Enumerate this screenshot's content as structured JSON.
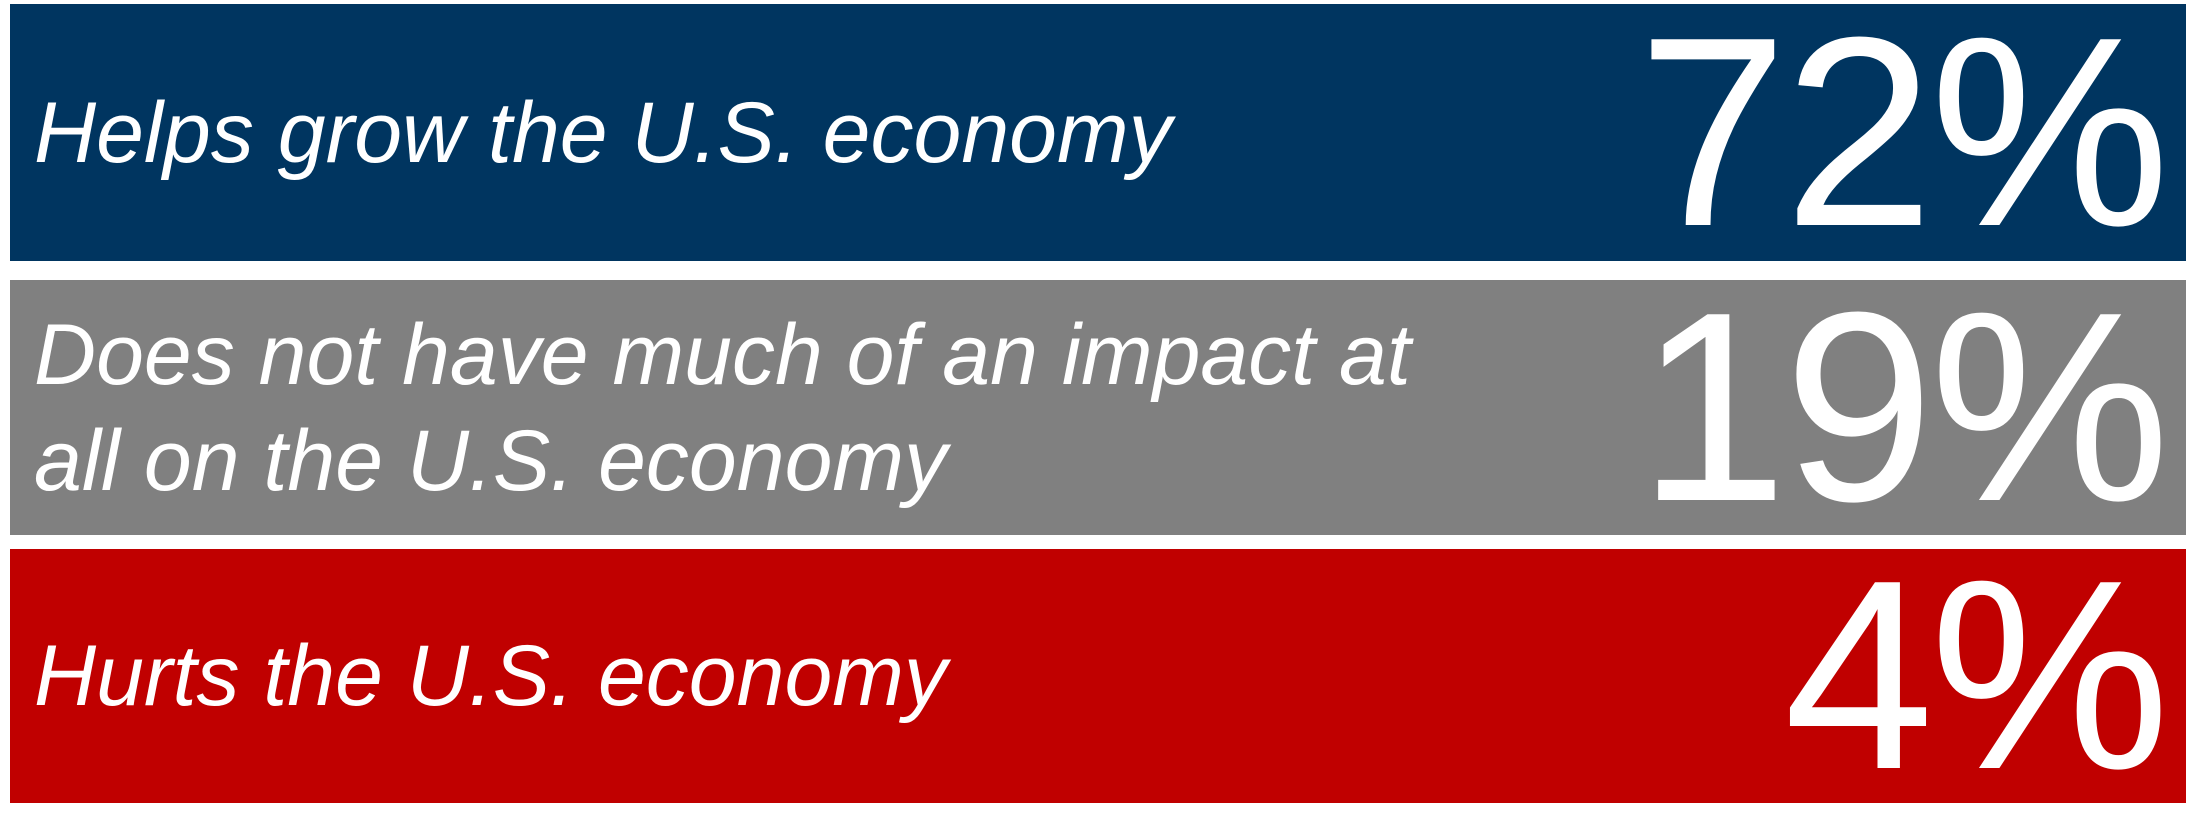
{
  "rows": [
    {
      "label": "Helps grow the U.S. economy",
      "value": "72%"
    },
    {
      "label": "Does not have much of an impact at all on the U.S. economy",
      "value": "19%"
    },
    {
      "label": "Hurts the U.S. economy",
      "value": "4%"
    }
  ]
}
